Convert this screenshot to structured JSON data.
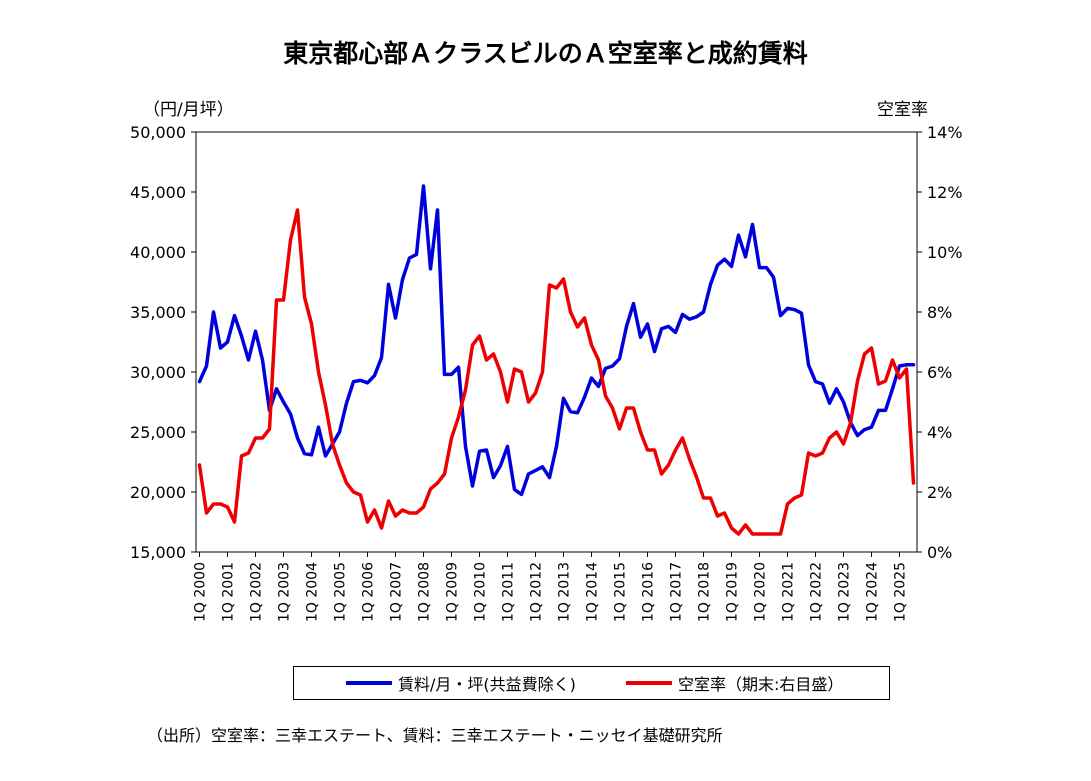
{
  "chart_data": {
    "type": "line",
    "title": "東京都心部ＡクラスビルのＡ空室率と成約賃料",
    "left_axis_unit": "（円/月坪）",
    "right_axis_unit": "空室率",
    "y_left": {
      "min": 15000,
      "max": 50000,
      "step": 5000,
      "tick_labels": [
        "15,000",
        "20,000",
        "25,000",
        "30,000",
        "35,000",
        "40,000",
        "45,000",
        "50,000"
      ]
    },
    "y_right": {
      "min": 0,
      "max": 14,
      "step": 2,
      "tick_labels": [
        "0%",
        "2%",
        "4%",
        "6%",
        "8%",
        "10%",
        "12%",
        "14%"
      ]
    },
    "x_tick_labels": [
      "1Q 2000",
      "1Q 2001",
      "1Q 2002",
      "1Q 2003",
      "1Q 2004",
      "1Q 2005",
      "1Q 2006",
      "1Q 2007",
      "1Q 2008",
      "1Q 2009",
      "1Q 2010",
      "1Q 2011",
      "1Q 2012",
      "1Q 2013",
      "1Q 2014",
      "1Q 2015",
      "1Q 2016",
      "1Q 2017",
      "1Q 2018",
      "1Q 2019",
      "1Q 2020",
      "1Q 2021",
      "1Q 2022",
      "1Q 2023",
      "1Q 2024",
      "1Q 2025"
    ],
    "quarters_count": 103,
    "series": [
      {
        "name": "賃料/月・坪(共益費除く)",
        "axis": "left",
        "color": "#0000dd",
        "values": [
          29200,
          30500,
          35000,
          32000,
          32500,
          34700,
          33000,
          31000,
          33400,
          31000,
          26800,
          28600,
          27500,
          26500,
          24500,
          23200,
          23100,
          25400,
          23000,
          24000,
          25000,
          27400,
          29200,
          29300,
          29100,
          29700,
          31200,
          37300,
          34500,
          37700,
          39500,
          39800,
          45500,
          38600,
          43500,
          29800,
          29800,
          30400,
          23800,
          20500,
          23400,
          23500,
          21200,
          22200,
          23800,
          20200,
          19800,
          21500,
          21800,
          22100,
          21200,
          23800,
          27800,
          26700,
          26600,
          27900,
          29500,
          28800,
          30300,
          30500,
          31100,
          33800,
          35700,
          32900,
          34000,
          31700,
          33600,
          33800,
          33300,
          34800,
          34400,
          34600,
          35000,
          37300,
          38900,
          39400,
          38800,
          41400,
          39600,
          42300,
          38700,
          38700,
          37900,
          34700,
          35300,
          35200,
          34900,
          30600,
          29200,
          29000,
          27400,
          28600,
          27500,
          25800,
          24700,
          25200,
          25400,
          26800,
          26800,
          28600,
          30500,
          30600,
          30600
        ]
      },
      {
        "name": "空室率（期末:右目盛）",
        "axis": "right",
        "color": "#ee0000",
        "values": [
          2.9,
          1.3,
          1.6,
          1.6,
          1.5,
          1.0,
          3.2,
          3.3,
          3.8,
          3.8,
          4.1,
          8.4,
          8.4,
          10.4,
          11.4,
          8.5,
          7.6,
          6.0,
          4.9,
          3.6,
          2.9,
          2.3,
          2.0,
          1.9,
          1.0,
          1.4,
          0.8,
          1.7,
          1.2,
          1.4,
          1.3,
          1.3,
          1.5,
          2.1,
          2.3,
          2.6,
          3.8,
          4.5,
          5.4,
          6.9,
          7.2,
          6.4,
          6.6,
          6.0,
          5.0,
          6.1,
          6.0,
          5.0,
          5.3,
          6.0,
          8.9,
          8.8,
          9.1,
          8.0,
          7.5,
          7.8,
          6.9,
          6.4,
          5.2,
          4.8,
          4.1,
          4.8,
          4.8,
          4.0,
          3.4,
          3.4,
          2.6,
          2.9,
          3.4,
          3.8,
          3.1,
          2.5,
          1.8,
          1.8,
          1.2,
          1.3,
          0.8,
          0.6,
          0.9,
          0.6,
          0.6,
          0.6,
          0.6,
          0.6,
          1.6,
          1.8,
          1.9,
          3.3,
          3.2,
          3.3,
          3.8,
          4.0,
          3.6,
          4.3,
          5.7,
          6.6,
          6.8,
          5.6,
          5.7,
          6.4,
          5.8,
          6.1,
          2.3
        ]
      }
    ],
    "legend_position": "bottom",
    "grid": false
  },
  "legend": {
    "rent_label": "賃料/月・坪(共益費除く)",
    "vacancy_label": "空室率（期末:右目盛）"
  },
  "source_note": "（出所）空室率：三幸エステート、賃料：三幸エステート・ニッセイ基礎研究所",
  "colors": {
    "rent": "#0000dd",
    "vacancy": "#ee0000"
  }
}
